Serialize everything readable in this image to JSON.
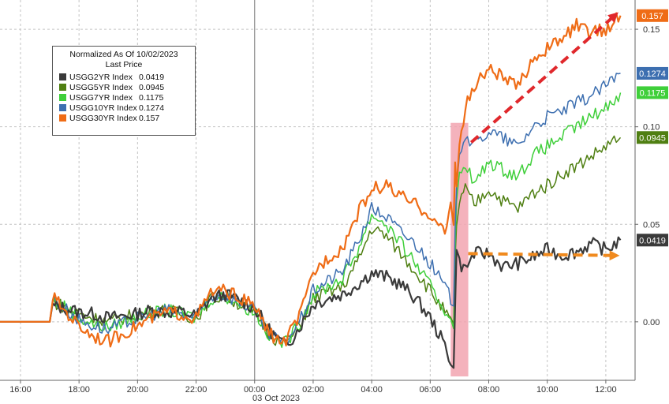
{
  "chart_data": {
    "type": "line",
    "legend": {
      "title": "Normalized As Of 10/02/2023",
      "subtitle": "Last Price",
      "placement": "top-left"
    },
    "date_label": "03 Oct 2023",
    "x_ticks": [
      "16:00",
      "18:00",
      "20:00",
      "22:00",
      "00:00",
      "02:00",
      "04:00",
      "06:00",
      "08:00",
      "10:00",
      "12:00"
    ],
    "y_ticks": [
      "0.00",
      "0.05",
      "0.10",
      "0.15"
    ],
    "ylim": [
      -0.03,
      0.165
    ],
    "xlim": [
      15.3,
      37.0
    ],
    "grid": true,
    "series": [
      {
        "name": "USGG2YR Index",
        "value": "0.0419",
        "color": "#3a3a3a",
        "x": [
          15.3,
          17.0,
          17.1,
          17.5,
          18.0,
          18.5,
          19.0,
          19.5,
          20.0,
          20.5,
          21.0,
          21.5,
          22.0,
          22.5,
          23.0,
          23.5,
          24.0,
          24.5,
          25.0,
          25.3,
          25.6,
          26.0,
          26.5,
          27.0,
          27.5,
          28.0,
          28.5,
          29.0,
          29.5,
          30.0,
          30.5,
          30.7,
          30.8,
          30.85,
          30.9,
          31.0,
          31.2,
          31.5,
          32.0,
          32.5,
          33.0,
          33.5,
          34.0,
          34.5,
          35.0,
          35.5,
          36.0,
          36.5
        ],
        "values": [
          0.0,
          0.0,
          0.008,
          0.007,
          0.005,
          0.004,
          0.002,
          0.003,
          0.004,
          0.006,
          0.005,
          0.005,
          0.003,
          0.012,
          0.014,
          0.011,
          0.007,
          -0.004,
          -0.012,
          -0.008,
          -0.001,
          0.009,
          0.012,
          0.014,
          0.019,
          0.025,
          0.023,
          0.019,
          0.012,
          0.002,
          -0.012,
          -0.02,
          -0.024,
          0.006,
          0.04,
          0.03,
          0.027,
          0.035,
          0.035,
          0.028,
          0.03,
          0.033,
          0.037,
          0.034,
          0.036,
          0.04,
          0.037,
          0.0419
        ]
      },
      {
        "name": "USGG5YR Index",
        "value": "0.0945",
        "color": "#4f7f12",
        "x": [
          15.3,
          17.0,
          17.1,
          17.5,
          18.0,
          18.5,
          19.0,
          19.5,
          20.0,
          20.5,
          21.0,
          21.5,
          22.0,
          22.5,
          23.0,
          23.5,
          24.0,
          24.5,
          25.0,
          25.3,
          25.6,
          26.0,
          26.5,
          27.0,
          27.5,
          28.0,
          28.5,
          29.0,
          29.5,
          30.0,
          30.5,
          30.7,
          30.8,
          30.85,
          30.9,
          31.0,
          31.2,
          31.5,
          32.0,
          32.5,
          33.0,
          33.5,
          34.0,
          34.5,
          35.0,
          35.5,
          36.0,
          36.5
        ],
        "values": [
          0.0,
          0.0,
          0.01,
          0.008,
          0.004,
          0.002,
          0.0,
          0.002,
          0.004,
          0.005,
          0.006,
          0.004,
          0.002,
          0.012,
          0.013,
          0.009,
          0.005,
          -0.006,
          -0.012,
          -0.007,
          0.0,
          0.012,
          0.015,
          0.018,
          0.03,
          0.048,
          0.044,
          0.035,
          0.026,
          0.016,
          0.005,
          0.0,
          -0.003,
          0.03,
          0.05,
          0.062,
          0.068,
          0.06,
          0.068,
          0.062,
          0.058,
          0.066,
          0.07,
          0.076,
          0.08,
          0.085,
          0.09,
          0.0945
        ]
      },
      {
        "name": "USGG7YR Index",
        "value": "0.1175",
        "color": "#3fcf3a",
        "x": [
          15.3,
          17.0,
          17.1,
          17.5,
          18.0,
          18.5,
          19.0,
          19.5,
          20.0,
          20.5,
          21.0,
          21.5,
          22.0,
          22.5,
          23.0,
          23.5,
          24.0,
          24.5,
          25.0,
          25.3,
          25.6,
          26.0,
          26.5,
          27.0,
          27.5,
          28.0,
          28.5,
          29.0,
          29.5,
          30.0,
          30.5,
          30.7,
          30.8,
          30.85,
          30.9,
          31.0,
          31.2,
          31.5,
          32.0,
          32.5,
          33.0,
          33.5,
          34.0,
          34.5,
          35.0,
          35.5,
          36.0,
          36.5
        ],
        "values": [
          0.0,
          0.0,
          0.011,
          0.008,
          0.002,
          -0.001,
          -0.003,
          0.0,
          0.003,
          0.004,
          0.006,
          0.004,
          0.002,
          0.012,
          0.013,
          0.009,
          0.005,
          -0.007,
          -0.011,
          -0.006,
          0.001,
          0.014,
          0.018,
          0.022,
          0.036,
          0.055,
          0.05,
          0.04,
          0.03,
          0.018,
          0.006,
          0.002,
          0.0,
          0.035,
          0.06,
          0.075,
          0.082,
          0.07,
          0.082,
          0.078,
          0.075,
          0.085,
          0.09,
          0.095,
          0.1,
          0.105,
          0.11,
          0.1175
        ]
      },
      {
        "name": "USGG10YR Index",
        "value": "0.1274",
        "color": "#3d6fb0",
        "x": [
          15.3,
          17.0,
          17.1,
          17.5,
          18.0,
          18.5,
          19.0,
          19.5,
          20.0,
          20.5,
          21.0,
          21.5,
          22.0,
          22.5,
          23.0,
          23.5,
          24.0,
          24.5,
          25.0,
          25.3,
          25.6,
          26.0,
          26.5,
          27.0,
          27.5,
          28.0,
          28.5,
          29.0,
          29.5,
          30.0,
          30.5,
          30.7,
          30.8,
          30.85,
          30.9,
          31.0,
          31.2,
          31.5,
          32.0,
          32.5,
          33.0,
          33.5,
          34.0,
          34.5,
          35.0,
          35.5,
          36.0,
          36.5
        ],
        "values": [
          0.0,
          0.0,
          0.012,
          0.007,
          0.001,
          -0.002,
          -0.004,
          -0.001,
          0.002,
          0.004,
          0.006,
          0.004,
          0.002,
          0.013,
          0.014,
          0.01,
          0.006,
          -0.007,
          -0.011,
          -0.005,
          0.002,
          0.016,
          0.021,
          0.026,
          0.04,
          0.058,
          0.054,
          0.046,
          0.04,
          0.03,
          0.018,
          0.012,
          0.01,
          0.045,
          0.072,
          0.088,
          0.096,
          0.09,
          0.098,
          0.094,
          0.09,
          0.1,
          0.105,
          0.108,
          0.112,
          0.116,
          0.121,
          0.1274
        ]
      },
      {
        "name": "USGG30YR Index",
        "value": "0.157",
        "color": "#ef6c16",
        "x": [
          15.3,
          17.0,
          17.1,
          17.5,
          18.0,
          18.5,
          19.0,
          19.5,
          20.0,
          20.5,
          21.0,
          21.5,
          22.0,
          22.5,
          23.0,
          23.5,
          24.0,
          24.5,
          25.0,
          25.3,
          25.6,
          26.0,
          26.5,
          27.0,
          27.5,
          28.0,
          28.5,
          29.0,
          29.5,
          30.0,
          30.5,
          30.7,
          30.8,
          30.85,
          30.9,
          31.0,
          31.2,
          31.5,
          32.0,
          32.5,
          33.0,
          33.5,
          34.0,
          34.5,
          35.0,
          35.5,
          36.0,
          36.5
        ],
        "values": [
          0.0,
          0.0,
          0.013,
          0.006,
          -0.002,
          -0.007,
          -0.01,
          -0.006,
          -0.002,
          0.002,
          0.005,
          0.004,
          0.002,
          0.015,
          0.016,
          0.012,
          0.008,
          -0.006,
          -0.011,
          -0.003,
          0.005,
          0.025,
          0.033,
          0.038,
          0.055,
          0.068,
          0.07,
          0.064,
          0.06,
          0.055,
          0.045,
          0.06,
          0.05,
          0.085,
          0.07,
          0.09,
          0.11,
          0.12,
          0.13,
          0.125,
          0.12,
          0.135,
          0.14,
          0.145,
          0.152,
          0.148,
          0.15,
          0.157
        ]
      }
    ],
    "annotations": [
      {
        "kind": "highlight-band",
        "x_start": 30.7,
        "x_end": 31.3,
        "color": "#f2a5b0"
      },
      {
        "kind": "dashed-arrow",
        "color": "#e0282c",
        "from": [
          31.4,
          0.092
        ],
        "to": [
          36.3,
          0.157
        ]
      },
      {
        "kind": "dashed-arrow",
        "color": "#f08a1e",
        "from": [
          31.3,
          0.035
        ],
        "to": [
          36.3,
          0.034
        ]
      }
    ]
  }
}
